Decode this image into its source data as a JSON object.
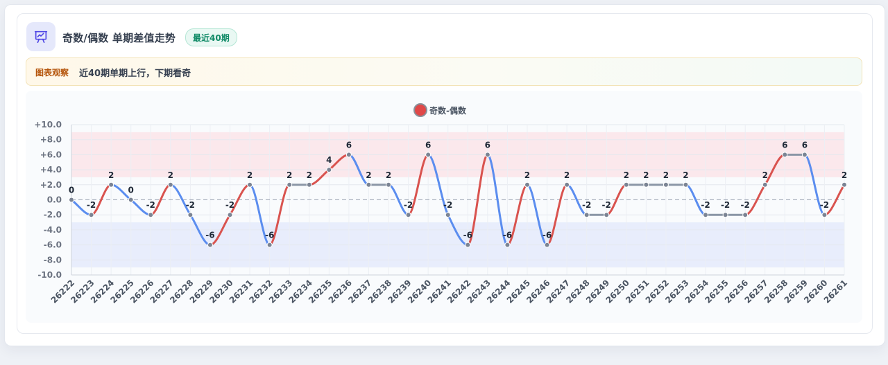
{
  "header": {
    "icon": "presentation-chart-icon",
    "title": "奇数/偶数 单期差值走势",
    "badge": "最近40期"
  },
  "observation": {
    "tag": "图表观察",
    "text": "近40期单期上行，下期看奇"
  },
  "colors": {
    "up": "#d9534f",
    "down": "#5b8def",
    "flat": "#8a96a6",
    "band_high": "#fbe2e5",
    "band_low": "#e2e8fb"
  },
  "chart_data": {
    "type": "line",
    "legend": {
      "position": "top-center",
      "entries": [
        "奇数-偶数"
      ]
    },
    "x": [
      "26222",
      "26223",
      "26224",
      "26225",
      "26226",
      "26227",
      "26228",
      "26229",
      "26230",
      "26231",
      "26232",
      "26233",
      "26234",
      "26235",
      "26236",
      "26237",
      "26238",
      "26239",
      "26240",
      "26241",
      "26242",
      "26243",
      "26244",
      "26245",
      "26246",
      "26247",
      "26248",
      "26249",
      "26250",
      "26251",
      "26252",
      "26253",
      "26254",
      "26255",
      "26256",
      "26257",
      "26258",
      "26259",
      "26260",
      "26261"
    ],
    "series": [
      {
        "name": "奇数-偶数",
        "values": [
          0,
          -2,
          2,
          0,
          -2,
          2,
          -2,
          -6,
          -2,
          2,
          -6,
          2,
          2,
          4,
          6,
          2,
          2,
          -2,
          6,
          -2,
          -6,
          6,
          -6,
          2,
          -6,
          2,
          -2,
          -2,
          2,
          2,
          2,
          2,
          -2,
          -2,
          -2,
          2,
          6,
          6,
          -2,
          2
        ]
      }
    ],
    "ylim": [
      -10,
      10
    ],
    "yticks": [
      10,
      8,
      6,
      4,
      2,
      0,
      -2,
      -4,
      -6,
      -8,
      -10
    ],
    "ytick_labels": [
      "+10.0",
      "+8.0",
      "+6.0",
      "+4.0",
      "+2.0",
      "0.0",
      "-2.0",
      "-4.0",
      "-6.0",
      "-8.0",
      "-10.0"
    ],
    "bands": [
      {
        "from": 3,
        "to": 9,
        "color": "#fbe2e5"
      },
      {
        "from": -9,
        "to": -3,
        "color": "#e2e8fb"
      }
    ],
    "zero_line": "dashed",
    "grid": true
  }
}
